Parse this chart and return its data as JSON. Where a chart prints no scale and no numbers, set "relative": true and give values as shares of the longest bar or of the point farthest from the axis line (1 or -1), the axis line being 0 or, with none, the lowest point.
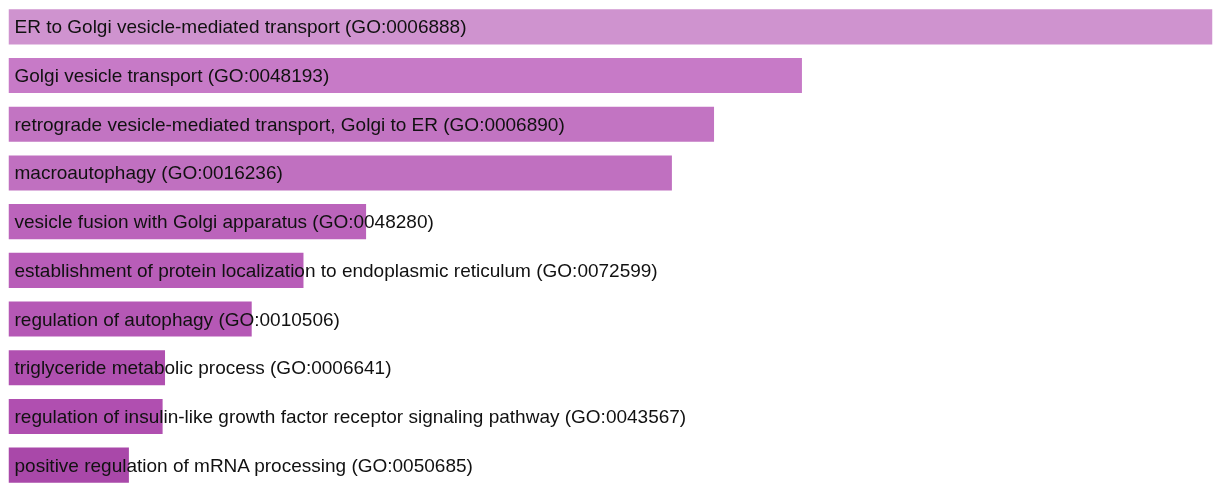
{
  "chart_data": {
    "type": "bar",
    "orientation": "horizontal",
    "relative": true,
    "tick_labels": false,
    "categories": [
      "ER to Golgi vesicle-mediated transport (GO:0006888)",
      "Golgi vesicle transport (GO:0048193)",
      "retrograde vesicle-mediated transport, Golgi to ER (GO:0006890)",
      "macroautophagy (GO:0016236)",
      "vesicle fusion with Golgi apparatus (GO:0048280)",
      "establishment of protein localization to endoplasmic reticulum (GO:0072599)",
      "regulation of autophagy (GO:0010506)",
      "triglyceride metabolic process (GO:0006641)",
      "regulation of insulin-like growth factor receptor signaling pathway (GO:0043567)",
      "positive regulation of mRNA processing (GO:0050685)"
    ],
    "values": [
      1.0,
      0.659,
      0.586,
      0.551,
      0.297,
      0.245,
      0.202,
      0.13,
      0.128,
      0.1
    ],
    "colors": [
      "#cf93cf",
      "#c77ac7",
      "#c274c2",
      "#c070c0",
      "#bb64bb",
      "#b85db8",
      "#b558b5",
      "#b050b0",
      "#b04fb0",
      "#a948a9"
    ]
  }
}
